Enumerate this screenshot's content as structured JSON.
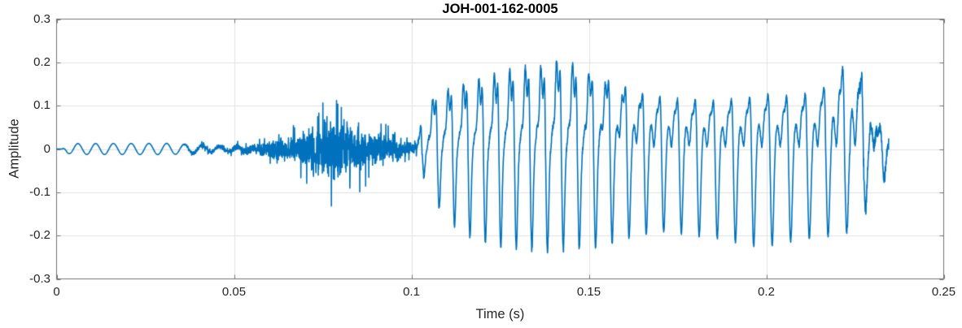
{
  "figure": {
    "title": "JOH-001-162-0005",
    "xlabel": "Time (s)",
    "ylabel": "Amplitude"
  },
  "colors": {
    "line": "#0072BD",
    "grid": "#E2E2E2",
    "axis": "#737373",
    "tick_label": "#262626",
    "title": "#000000",
    "background": "#FFFFFF"
  },
  "chart_data": {
    "type": "line",
    "title": "JOH-001-162-0005",
    "xlabel": "Time (s)",
    "ylabel": "Amplitude",
    "xlim": [
      0,
      0.25
    ],
    "ylim": [
      -0.3,
      0.3
    ],
    "grid": true,
    "legend": "none",
    "line_color": "#0072BD",
    "xticks": {
      "values": [
        0,
        0.05,
        0.1,
        0.15,
        0.2,
        0.25
      ],
      "labels": [
        "0",
        "0.05",
        "0.1",
        "0.15",
        "0.2",
        "0.25"
      ]
    },
    "yticks": {
      "values": [
        0.3,
        0.2,
        0.1,
        0,
        -0.1,
        -0.2,
        -0.3
      ],
      "labels": [
        "0.3",
        "0.2",
        "0.1",
        "0",
        "-0.1",
        "-0.2",
        "-0.3"
      ]
    },
    "signal": {
      "description": "Speech-like audio waveform: quiet ~200 Hz hum (0-0.04 s, about ±0.012), broadband fricative noise burst (0.05-0.1 s, peaking near ±0.13 at ~0.077 s), then a strong quasi-periodic voiced segment (~0.10-0.235 s, f0 ~230->190 Hz) with positive peaks up to ~0.21 and troughs to ~-0.235, ending abruptly at ~0.235 s.",
      "duration": 0.2345,
      "dt": 5e-05,
      "seed": 1337,
      "hum": {
        "freq": 200,
        "phase": 0.3,
        "env": [
          [
            0,
            0
          ],
          [
            0.0015,
            0
          ],
          [
            0.003,
            0.01
          ],
          [
            0.005,
            0.0125
          ],
          [
            0.032,
            0.013
          ],
          [
            0.038,
            0.01
          ],
          [
            0.044,
            0.007
          ],
          [
            0.05,
            0.005
          ],
          [
            0.055,
            0.003
          ],
          [
            0.06,
            0
          ]
        ]
      },
      "noise": {
        "env": [
          [
            0.034,
            0
          ],
          [
            0.038,
            0.006
          ],
          [
            0.042,
            0.008
          ],
          [
            0.046,
            0.009
          ],
          [
            0.05,
            0.012
          ],
          [
            0.054,
            0.016
          ],
          [
            0.058,
            0.025
          ],
          [
            0.062,
            0.035
          ],
          [
            0.066,
            0.05
          ],
          [
            0.07,
            0.07
          ],
          [
            0.073,
            0.095
          ],
          [
            0.076,
            0.12
          ],
          [
            0.078,
            0.125
          ],
          [
            0.08,
            0.105
          ],
          [
            0.083,
            0.095
          ],
          [
            0.086,
            0.09
          ],
          [
            0.089,
            0.07
          ],
          [
            0.092,
            0.055
          ],
          [
            0.095,
            0.045
          ],
          [
            0.098,
            0.032
          ],
          [
            0.1,
            0.022
          ],
          [
            0.102,
            0.012
          ],
          [
            0.104,
            0.006
          ],
          [
            0.106,
            0
          ]
        ],
        "spike_prob": 0.03
      },
      "voiced": {
        "onset": 0.1005,
        "f0": [
          [
            0.1005,
            232
          ],
          [
            0.135,
            228
          ],
          [
            0.15,
            218
          ],
          [
            0.165,
            205
          ],
          [
            0.185,
            196
          ],
          [
            0.21,
            190
          ],
          [
            0.2345,
            188
          ]
        ],
        "pos_env": [
          [
            0.1015,
            0
          ],
          [
            0.103,
            0.08
          ],
          [
            0.105,
            0.1
          ],
          [
            0.107,
            0.13
          ],
          [
            0.1115,
            0.14
          ],
          [
            0.116,
            0.155
          ],
          [
            0.121,
            0.165
          ],
          [
            0.127,
            0.18
          ],
          [
            0.133,
            0.19
          ],
          [
            0.138,
            0.19
          ],
          [
            0.143,
            0.21
          ],
          [
            0.1475,
            0.185
          ],
          [
            0.152,
            0.165
          ],
          [
            0.157,
            0.15
          ],
          [
            0.162,
            0.135
          ],
          [
            0.168,
            0.12
          ],
          [
            0.175,
            0.115
          ],
          [
            0.185,
            0.11
          ],
          [
            0.193,
            0.115
          ],
          [
            0.2,
            0.125
          ],
          [
            0.205,
            0.12
          ],
          [
            0.2095,
            0.125
          ],
          [
            0.2135,
            0.13
          ],
          [
            0.218,
            0.155
          ],
          [
            0.2235,
            0.205
          ],
          [
            0.227,
            0.17
          ],
          [
            0.2295,
            0.12
          ],
          [
            0.2315,
            0.05
          ],
          [
            0.2335,
            0.04
          ],
          [
            0.2345,
            0.045
          ]
        ],
        "neg_env": [
          [
            0.1015,
            0
          ],
          [
            0.1035,
            0.06
          ],
          [
            0.1055,
            0.1
          ],
          [
            0.108,
            0.14
          ],
          [
            0.111,
            0.17
          ],
          [
            0.1145,
            0.19
          ],
          [
            0.119,
            0.215
          ],
          [
            0.125,
            0.225
          ],
          [
            0.131,
            0.23
          ],
          [
            0.1385,
            0.235
          ],
          [
            0.1455,
            0.23
          ],
          [
            0.152,
            0.225
          ],
          [
            0.158,
            0.21
          ],
          [
            0.165,
            0.195
          ],
          [
            0.172,
            0.19
          ],
          [
            0.18,
            0.2
          ],
          [
            0.188,
            0.21
          ],
          [
            0.1955,
            0.225
          ],
          [
            0.203,
            0.22
          ],
          [
            0.21,
            0.21
          ],
          [
            0.2155,
            0.2
          ],
          [
            0.2205,
            0.2
          ],
          [
            0.2245,
            0.185
          ],
          [
            0.2275,
            0.15
          ],
          [
            0.2295,
            0.11
          ],
          [
            0.2315,
            0.125
          ],
          [
            0.2335,
            0.06
          ],
          [
            0.2345,
            0.02
          ]
        ],
        "harmonic_phases": [
          2.3,
          4.1,
          0.6
        ],
        "h2_ramp": [
          0.148,
          0.168,
          0.5,
          0.85
        ],
        "jitter": 0.04,
        "tail_jitter_start": 0.2255,
        "tail_jitter": 0.014
      }
    }
  }
}
